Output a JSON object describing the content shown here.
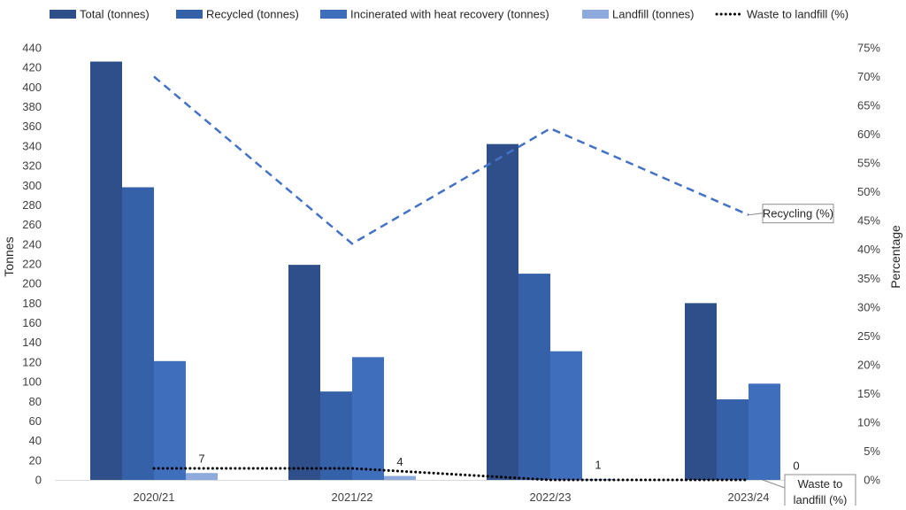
{
  "chart_data": {
    "type": "bar",
    "categories": [
      "2020/21",
      "2021/22",
      "2022/23",
      "2023/24"
    ],
    "series": [
      {
        "name": "Total (tonnes)",
        "type": "bar",
        "axis": "left",
        "color": "#2F4F8A",
        "values": [
          426,
          219,
          342,
          180
        ]
      },
      {
        "name": "Recycled (tonnes)",
        "type": "bar",
        "axis": "left",
        "color": "#3461A8",
        "values": [
          298,
          90,
          210,
          82
        ]
      },
      {
        "name": "Incinerated with heat recovery (tonnes)",
        "type": "bar",
        "axis": "left",
        "color": "#3F6FBC",
        "values": [
          121,
          125,
          131,
          98
        ]
      },
      {
        "name": "Landfill (tonnes)",
        "type": "bar",
        "axis": "left",
        "color": "#8EA9DB",
        "values": [
          7,
          4,
          1,
          0
        ],
        "data_labels": [
          "7",
          "4",
          "1",
          "0"
        ]
      },
      {
        "name": "Waste to landfill (%)",
        "type": "line",
        "axis": "right",
        "style": "dotted",
        "color": "#000000",
        "values": [
          2,
          2,
          0,
          0
        ]
      },
      {
        "name": "Recycling (%)",
        "type": "line",
        "axis": "right",
        "style": "dashed",
        "color": "#4472C4",
        "values": [
          70,
          41,
          61,
          46
        ],
        "in_legend": false
      }
    ],
    "ylabel": "Tonnes",
    "ylim": [
      0,
      440
    ],
    "yticks": [
      "0",
      "20",
      "40",
      "60",
      "80",
      "100",
      "120",
      "140",
      "160",
      "180",
      "200",
      "220",
      "240",
      "260",
      "280",
      "300",
      "320",
      "340",
      "360",
      "380",
      "400",
      "420",
      "440"
    ],
    "y2label": "Percentage",
    "y2lim": [
      0,
      75
    ],
    "y2ticks": [
      "0%",
      "5%",
      "10%",
      "15%",
      "20%",
      "25%",
      "30%",
      "35%",
      "40%",
      "45%",
      "50%",
      "55%",
      "60%",
      "65%",
      "70%",
      "75%"
    ],
    "callouts": {
      "recycling": "Recycling (%)",
      "landfill_line1": "Waste to",
      "landfill_line2": "landfill (%)"
    },
    "legend_position": "top",
    "grid": false
  }
}
